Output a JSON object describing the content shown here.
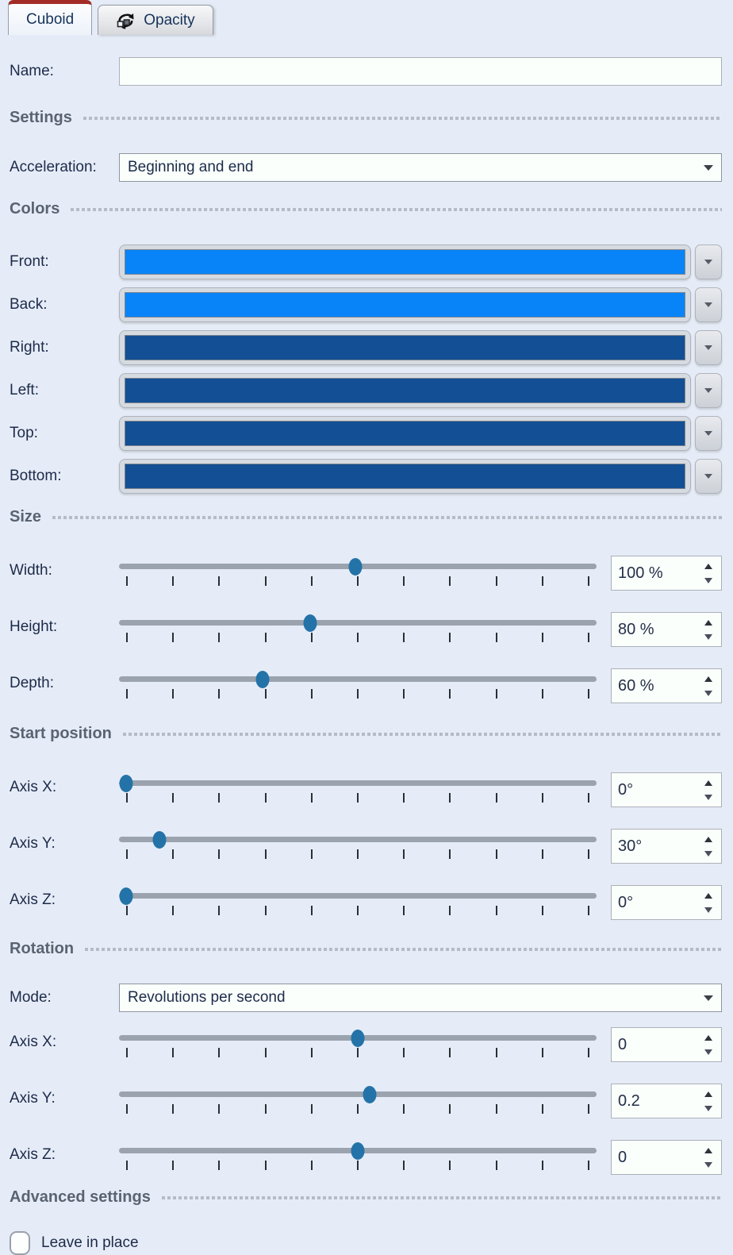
{
  "tabs": {
    "cuboid": {
      "label": "Cuboid",
      "active": true,
      "accent_color": "#a32c26"
    },
    "opacity": {
      "label": "Opacity",
      "active": false,
      "icon": "rotation-icon"
    }
  },
  "name_row": {
    "label": "Name:",
    "value": "",
    "placeholder": ""
  },
  "settings": {
    "header": "Settings",
    "acceleration": {
      "label": "Acceleration:",
      "value": "Beginning and end"
    }
  },
  "colors": {
    "header": "Colors",
    "rows": [
      {
        "label": "Front:",
        "color": "#0984f8"
      },
      {
        "label": "Back:",
        "color": "#0984f8"
      },
      {
        "label": "Right:",
        "color": "#134f94"
      },
      {
        "label": "Left:",
        "color": "#134f94"
      },
      {
        "label": "Top:",
        "color": "#134f94"
      },
      {
        "label": "Bottom:",
        "color": "#134f94"
      }
    ]
  },
  "size": {
    "header": "Size",
    "rows": [
      {
        "label": "Width:",
        "value": "100 %",
        "pct": 49.5
      },
      {
        "label": "Height:",
        "value": "80 %",
        "pct": 40
      },
      {
        "label": "Depth:",
        "value": "60 %",
        "pct": 30
      }
    ]
  },
  "start_position": {
    "header": "Start position",
    "rows": [
      {
        "label": "Axis X:",
        "value": "0°",
        "pct": 1.5
      },
      {
        "label": "Axis Y:",
        "value": "30°",
        "pct": 8.5
      },
      {
        "label": "Axis Z:",
        "value": "0°",
        "pct": 1.5
      }
    ]
  },
  "rotation": {
    "header": "Rotation",
    "mode": {
      "label": "Mode:",
      "value": "Revolutions per second"
    },
    "rows": [
      {
        "label": "Axis X:",
        "value": "0",
        "pct": 50
      },
      {
        "label": "Axis Y:",
        "value": "0.2",
        "pct": 52.5
      },
      {
        "label": "Axis Z:",
        "value": "0",
        "pct": 50
      }
    ]
  },
  "advanced": {
    "header": "Advanced settings",
    "leave_in_place": {
      "label": "Leave in place",
      "checked": false
    }
  },
  "ui_colors": {
    "panel_background": "#e6ecf7",
    "front_back_blue": "#0984f8",
    "side_blue": "#134f94",
    "slider_thumb_blue": "#2473a8",
    "tab_accent_red": "#a32c26",
    "input_background": "#fafffc"
  },
  "icons": {
    "opacity_tab": "rotation-icon",
    "dropdown": "chevron-down",
    "spin_up": "triangle-up",
    "spin_down": "triangle-down"
  }
}
